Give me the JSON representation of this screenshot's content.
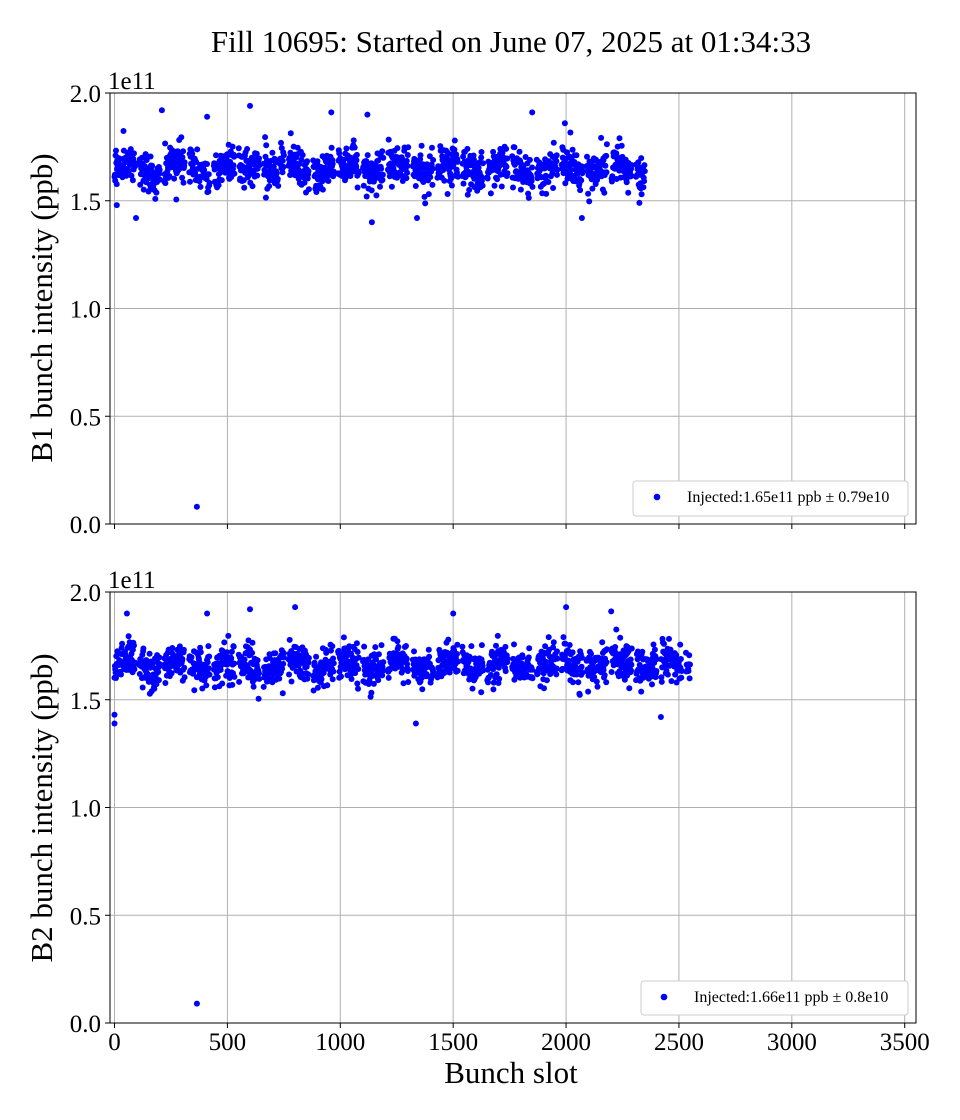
{
  "figure": {
    "title": "Fill 10695: Started on June 07, 2025 at 01:34:33",
    "xlabel": "Bunch slot"
  },
  "colors": {
    "points": "#0000ff",
    "grid": "#b0b0b0",
    "axes": "#000000",
    "legend_border": "#cccccc"
  },
  "chart_data": [
    {
      "type": "scatter",
      "ylabel": "B1 bunch intensity (ppb)",
      "y_multiplier_label": "1e11",
      "xlim": [
        -20,
        3550
      ],
      "ylim": [
        0,
        2.0
      ],
      "x_ticks": [
        0,
        500,
        1000,
        1500,
        2000,
        2500,
        3000,
        3500
      ],
      "x_tick_labels_visible": false,
      "y_ticks": [
        0.0,
        0.5,
        1.0,
        1.5,
        2.0
      ],
      "y_tick_labels": [
        "0.0",
        "0.5",
        "1.0",
        "1.5",
        "2.0"
      ],
      "grid": true,
      "legend": {
        "placement": "lower right",
        "entries": [
          "Injected:1.65e11 ppb ± 0.79e10"
        ]
      },
      "series": [
        {
          "name": "Injected:1.65e11 ppb ± 0.79e10",
          "summary": {
            "approx_x_range": [
              0,
              2350
            ],
            "approx_y_band": [
              1.4,
              1.94
            ],
            "typical_y": 1.65
          },
          "points_notable": [
            {
              "x": 10,
              "y": 1.48
            },
            {
              "x": 95,
              "y": 1.42
            },
            {
              "x": 210,
              "y": 1.92
            },
            {
              "x": 365,
              "y": 0.08
            },
            {
              "x": 410,
              "y": 1.89
            },
            {
              "x": 600,
              "y": 1.94
            },
            {
              "x": 960,
              "y": 1.91
            },
            {
              "x": 1120,
              "y": 1.9
            },
            {
              "x": 1140,
              "y": 1.4
            },
            {
              "x": 1340,
              "y": 1.42
            },
            {
              "x": 1850,
              "y": 1.91
            },
            {
              "x": 1995,
              "y": 1.86
            },
            {
              "x": 2070,
              "y": 1.42
            }
          ]
        }
      ]
    },
    {
      "type": "scatter",
      "ylabel": "B2 bunch intensity (ppb)",
      "y_multiplier_label": "1e11",
      "xlim": [
        -20,
        3550
      ],
      "ylim": [
        0,
        2.0
      ],
      "x_ticks": [
        0,
        500,
        1000,
        1500,
        2000,
        2500,
        3000,
        3500
      ],
      "x_tick_labels": [
        "0",
        "500",
        "1000",
        "1500",
        "2000",
        "2500",
        "3000",
        "3500"
      ],
      "y_ticks": [
        0.0,
        0.5,
        1.0,
        1.5,
        2.0
      ],
      "y_tick_labels": [
        "0.0",
        "0.5",
        "1.0",
        "1.5",
        "2.0"
      ],
      "grid": true,
      "legend": {
        "placement": "lower right",
        "entries": [
          "Injected:1.66e11 ppb ± 0.8e10"
        ]
      },
      "series": [
        {
          "name": "Injected:1.66e11 ppb ± 0.8e10",
          "summary": {
            "approx_x_range": [
              0,
              2550
            ],
            "approx_y_band": [
              1.39,
              1.93
            ],
            "typical_y": 1.66
          },
          "points_notable": [
            {
              "x": 0,
              "y": 1.39
            },
            {
              "x": 0,
              "y": 1.43
            },
            {
              "x": 55,
              "y": 1.9
            },
            {
              "x": 365,
              "y": 0.09
            },
            {
              "x": 410,
              "y": 1.9
            },
            {
              "x": 600,
              "y": 1.92
            },
            {
              "x": 800,
              "y": 1.93
            },
            {
              "x": 1335,
              "y": 1.39
            },
            {
              "x": 1500,
              "y": 1.9
            },
            {
              "x": 2000,
              "y": 1.93
            },
            {
              "x": 2200,
              "y": 1.91
            },
            {
              "x": 2420,
              "y": 1.42
            }
          ]
        }
      ]
    }
  ]
}
